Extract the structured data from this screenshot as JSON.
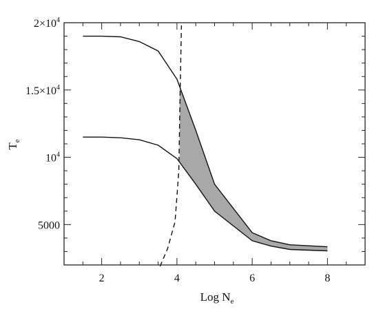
{
  "chart_data": {
    "type": "line",
    "title": "",
    "xlabel_main": "Log N",
    "xlabel_sub": "e",
    "ylabel_main": "T",
    "ylabel_sub": "e",
    "xlim": [
      1.0,
      9.0
    ],
    "ylim": [
      2000,
      20000
    ],
    "grid": false,
    "legend": "none",
    "x_ticks": [
      {
        "value": 2,
        "label": "2"
      },
      {
        "value": 4,
        "label": "4"
      },
      {
        "value": 6,
        "label": "6"
      },
      {
        "value": 8,
        "label": "8"
      }
    ],
    "y_ticks": [
      {
        "value": 5000,
        "label": "5000",
        "sup": ""
      },
      {
        "value": 10000,
        "label": "10",
        "sup": "4"
      },
      {
        "value": 15000,
        "label": "1.5×10",
        "sup": "4"
      },
      {
        "value": 20000,
        "label": "2×10",
        "sup": "4"
      }
    ],
    "series": [
      {
        "style": "solid",
        "x": [
          1.5,
          2.0,
          2.5,
          3.0,
          3.5,
          4.0,
          4.5,
          5.0,
          6.0,
          6.5,
          7.0,
          8.0
        ],
        "y": [
          19000,
          19000,
          18950,
          18600,
          17900,
          15800,
          12000,
          8000,
          4400,
          3800,
          3500,
          3350
        ]
      },
      {
        "style": "solid",
        "x": [
          1.5,
          2.0,
          2.5,
          3.0,
          3.5,
          4.0,
          4.5,
          5.0,
          6.0,
          6.5,
          7.0,
          8.0
        ],
        "y": [
          11500,
          11500,
          11450,
          11300,
          10900,
          9900,
          8000,
          6000,
          3800,
          3400,
          3150,
          3050
        ]
      },
      {
        "style": "dashed",
        "x": [
          3.55,
          3.75,
          3.95,
          4.05,
          4.08,
          4.12
        ],
        "y": [
          1900,
          3200,
          5200,
          9000,
          14000,
          19800
        ]
      }
    ],
    "shaded_region": {
      "fill": "#a8a8a8",
      "x_from": 4.07,
      "upper": [
        [
          4.07,
          15200
        ],
        [
          4.5,
          12000
        ],
        [
          5.0,
          8000
        ],
        [
          6.0,
          4400
        ],
        [
          6.5,
          3800
        ],
        [
          7.0,
          3500
        ],
        [
          8.0,
          3350
        ]
      ],
      "lower": [
        [
          4.07,
          9600
        ],
        [
          4.5,
          8000
        ],
        [
          5.0,
          6000
        ],
        [
          6.0,
          3800
        ],
        [
          6.5,
          3400
        ],
        [
          7.0,
          3150
        ],
        [
          8.0,
          3050
        ]
      ]
    }
  }
}
